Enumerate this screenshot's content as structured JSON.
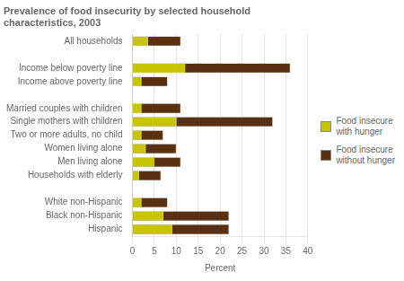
{
  "chart_data": {
    "type": "bar",
    "orientation": "horizontal",
    "stacked": true,
    "title": "Prevalence of food insecurity by selected household\ncharacteristics, 2003",
    "categories": [
      "All households",
      null,
      "Income below poverty line",
      "Income above poverty line",
      null,
      "Married couples with children",
      "Single mothers with children",
      "Two or more adults, no child",
      "Women living alone",
      "Men living alone",
      "Households with elderly",
      null,
      "White non-Hispanic",
      "Black non-Hispanic",
      "Hispanic"
    ],
    "series": [
      {
        "name": "Food insecure\nwith hunger",
        "color": "#c8c400",
        "values": [
          3.5,
          0,
          12,
          2,
          0,
          2,
          10,
          2,
          3,
          5,
          1.5,
          0,
          2,
          7,
          9
        ]
      },
      {
        "name": "Food insecure\nwithout hunger",
        "color": "#5a3010",
        "values": [
          7.5,
          0,
          24,
          6,
          0,
          9,
          22,
          5,
          7,
          6,
          5,
          0,
          6,
          15,
          13
        ]
      }
    ],
    "xlabel": "Percent",
    "xlim": [
      0,
      40
    ],
    "xticks": [
      0,
      5,
      10,
      15,
      20,
      25,
      30,
      35,
      40
    ],
    "grid": true,
    "legend": "right"
  }
}
